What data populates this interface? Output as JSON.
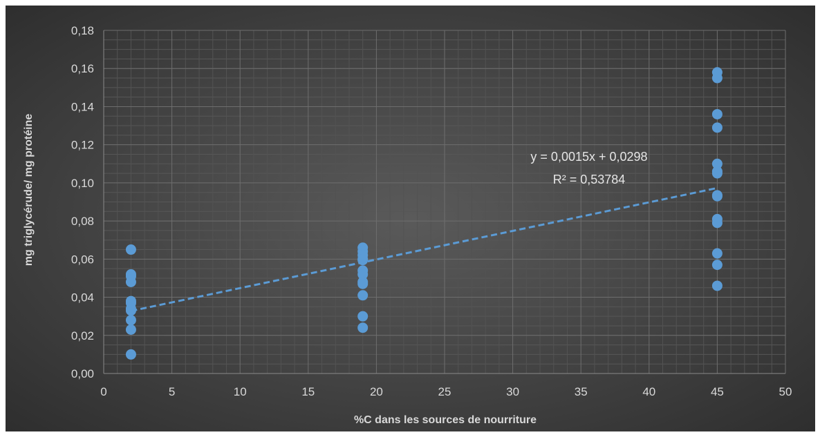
{
  "chart_data": {
    "type": "scatter",
    "title": "",
    "xlabel": "%C dans les sources de nourriture",
    "ylabel": "mg triglycérude/ mg protéine",
    "xlim": [
      0,
      50
    ],
    "ylim": [
      0,
      0.18
    ],
    "x_ticks": [
      "0",
      "5",
      "10",
      "15",
      "20",
      "25",
      "30",
      "35",
      "40",
      "45",
      "50"
    ],
    "y_ticks": [
      "0,00",
      "0,02",
      "0,04",
      "0,06",
      "0,08",
      "0,10",
      "0,12",
      "0,14",
      "0,16",
      "0,18"
    ],
    "grid": true,
    "legend": "none",
    "series": [
      {
        "x": [
          2,
          2,
          2,
          2,
          2,
          2,
          2,
          2,
          2,
          2,
          2,
          19,
          19,
          19,
          19,
          19,
          19,
          19,
          19,
          19,
          19,
          19,
          19,
          45,
          45,
          45,
          45,
          45,
          45,
          45,
          45,
          45,
          45,
          45,
          45,
          45,
          45
        ],
        "y": [
          0.065,
          0.052,
          0.051,
          0.048,
          0.038,
          0.037,
          0.034,
          0.033,
          0.028,
          0.023,
          0.01,
          0.066,
          0.064,
          0.062,
          0.06,
          0.054,
          0.052,
          0.048,
          0.047,
          0.041,
          0.03,
          0.024,
          0.0595,
          0.158,
          0.155,
          0.136,
          0.129,
          0.11,
          0.106,
          0.105,
          0.093,
          0.081,
          0.079,
          0.063,
          0.057,
          0.046,
          0.0935
        ]
      }
    ],
    "trendline": {
      "type": "linear",
      "x_range": [
        2,
        45
      ],
      "equation": "y = 0,0015x + 0,0298",
      "r2": "R² = 0,53784",
      "slope": 0.0015,
      "intercept": 0.0298
    },
    "colors": {
      "marker": "#5B9BD5",
      "trendline": "#5B9BD5",
      "grid": "#6e6e6e"
    }
  }
}
